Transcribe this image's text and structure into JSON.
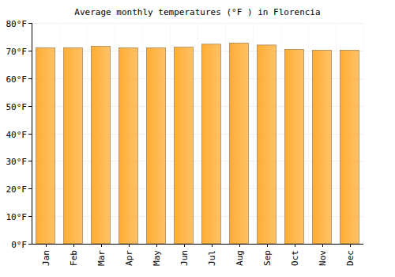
{
  "chart_data": {
    "type": "bar",
    "title": "Average monthly temperatures (°F ) in Florencia",
    "categories": [
      "Jan",
      "Feb",
      "Mar",
      "Apr",
      "May",
      "Jun",
      "Jul",
      "Aug",
      "Sep",
      "Oct",
      "Nov",
      "Dec"
    ],
    "values": [
      71,
      71,
      71.5,
      71,
      71,
      71.2,
      72.3,
      72.7,
      72,
      70.4,
      70.1,
      70.1
    ],
    "color": "#ffad33",
    "ylim": [
      0,
      80
    ],
    "yticks": [
      {
        "value": 0,
        "label": "0°F"
      },
      {
        "value": 10,
        "label": "10°F"
      },
      {
        "value": 20,
        "label": "20°F"
      },
      {
        "value": 30,
        "label": "30°F"
      },
      {
        "value": 40,
        "label": "40°F"
      },
      {
        "value": 50,
        "label": "50°F"
      },
      {
        "value": 60,
        "label": "60°F"
      },
      {
        "value": 70,
        "label": "70°F"
      },
      {
        "value": 80,
        "label": "80°F"
      }
    ],
    "grid": true
  }
}
